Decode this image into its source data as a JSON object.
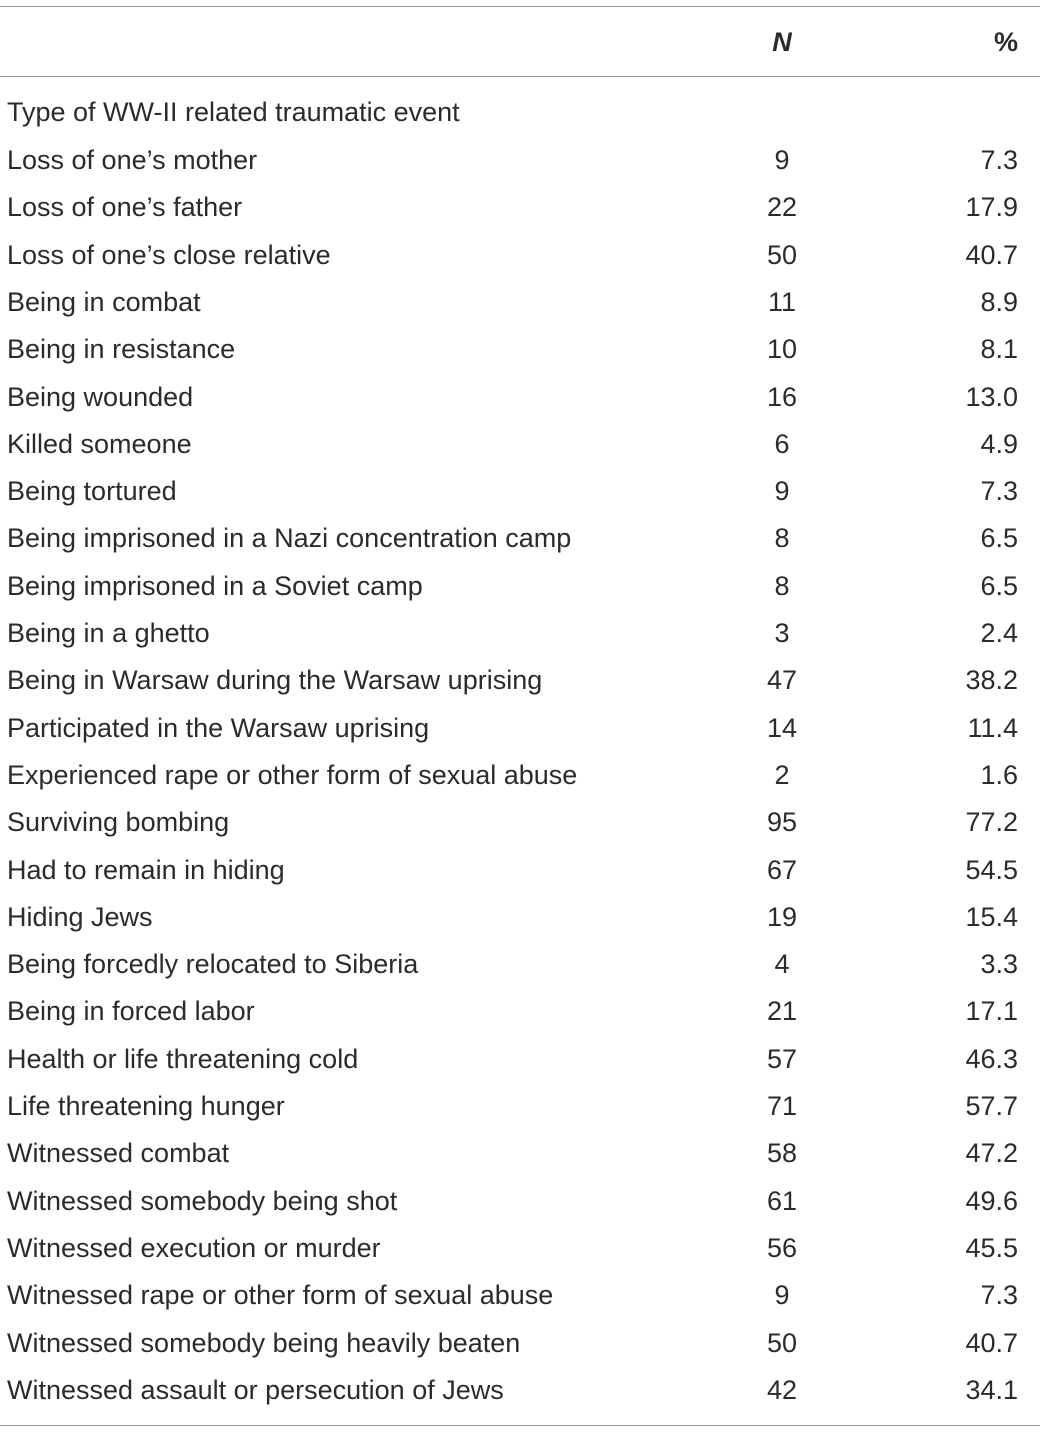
{
  "table": {
    "header": {
      "n": "N",
      "percent": "%"
    },
    "section": "Type of WW-II related traumatic event",
    "rows": [
      [
        "Loss of one’s mother",
        9,
        "7.3"
      ],
      [
        "Loss of one’s father",
        22,
        "17.9"
      ],
      [
        "Loss of one’s close relative",
        50,
        "40.7"
      ],
      [
        "Being in combat",
        11,
        "8.9"
      ],
      [
        "Being in resistance",
        10,
        "8.1"
      ],
      [
        "Being wounded",
        16,
        "13.0"
      ],
      [
        "Killed someone",
        6,
        "4.9"
      ],
      [
        "Being tortured",
        9,
        "7.3"
      ],
      [
        "Being imprisoned in a Nazi concentration camp",
        8,
        "6.5"
      ],
      [
        "Being imprisoned in a Soviet camp",
        8,
        "6.5"
      ],
      [
        "Being in a ghetto",
        3,
        "2.4"
      ],
      [
        "Being in Warsaw during the Warsaw uprising",
        47,
        "38.2"
      ],
      [
        "Participated in the Warsaw uprising",
        14,
        "11.4"
      ],
      [
        "Experienced rape or other form of sexual abuse",
        2,
        "1.6"
      ],
      [
        "Surviving bombing",
        95,
        "77.2"
      ],
      [
        "Had to remain in hiding",
        67,
        "54.5"
      ],
      [
        "Hiding Jews",
        19,
        "15.4"
      ],
      [
        "Being forcedly relocated to Siberia",
        4,
        "3.3"
      ],
      [
        "Being in forced labor",
        21,
        "17.1"
      ],
      [
        "Health or life threatening cold",
        57,
        "46.3"
      ],
      [
        "Life threatening hunger",
        71,
        "57.7"
      ],
      [
        "Witnessed combat",
        58,
        "47.2"
      ],
      [
        "Witnessed somebody being shot",
        61,
        "49.6"
      ],
      [
        "Witnessed execution or murder",
        56,
        "45.5"
      ],
      [
        "Witnessed rape or other form of sexual abuse",
        9,
        "7.3"
      ],
      [
        "Witnessed somebody being heavily beaten",
        50,
        "40.7"
      ],
      [
        "Witnessed assault or persecution of Jews",
        42,
        "34.1"
      ]
    ]
  }
}
